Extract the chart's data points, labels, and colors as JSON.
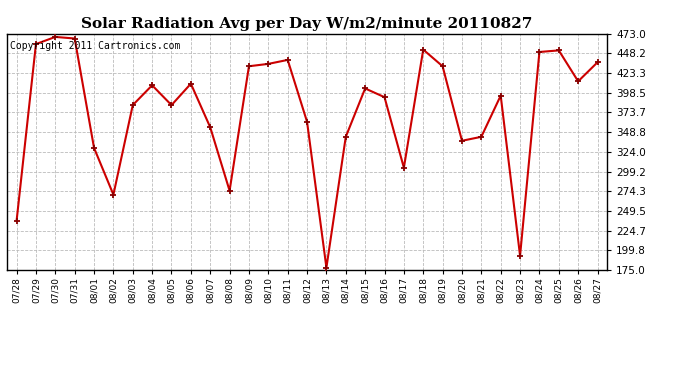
{
  "title": "Solar Radiation Avg per Day W/m2/minute 20110827",
  "copyright": "Copyright 2011 Cartronics.com",
  "dates": [
    "07/28",
    "07/29",
    "07/30",
    "07/31",
    "08/01",
    "08/02",
    "08/03",
    "08/04",
    "08/05",
    "08/06",
    "08/07",
    "08/08",
    "08/09",
    "08/10",
    "08/11",
    "08/12",
    "08/13",
    "08/14",
    "08/15",
    "08/16",
    "08/17",
    "08/18",
    "08/19",
    "08/20",
    "08/21",
    "08/22",
    "08/23",
    "08/24",
    "08/25",
    "08/26",
    "08/27"
  ],
  "values": [
    237.0,
    460.0,
    469.0,
    467.0,
    329.0,
    270.0,
    383.0,
    408.0,
    383.0,
    410.0,
    355.0,
    275.0,
    432.0,
    435.0,
    440.0,
    362.0,
    178.0,
    343.0,
    404.0,
    393.0,
    304.0,
    453.0,
    432.0,
    338.0,
    343.0,
    395.0,
    193.0,
    450.0,
    452.0,
    413.0,
    437.0
  ],
  "line_color": "#cc0000",
  "marker_color": "#880000",
  "bg_color": "#ffffff",
  "grid_color": "#bbbbbb",
  "ylim": [
    175.0,
    473.0
  ],
  "yticks": [
    175.0,
    199.8,
    224.7,
    249.5,
    274.3,
    299.2,
    324.0,
    348.8,
    373.7,
    398.5,
    423.3,
    448.2,
    473.0
  ],
  "title_fontsize": 11,
  "copyright_fontsize": 7
}
